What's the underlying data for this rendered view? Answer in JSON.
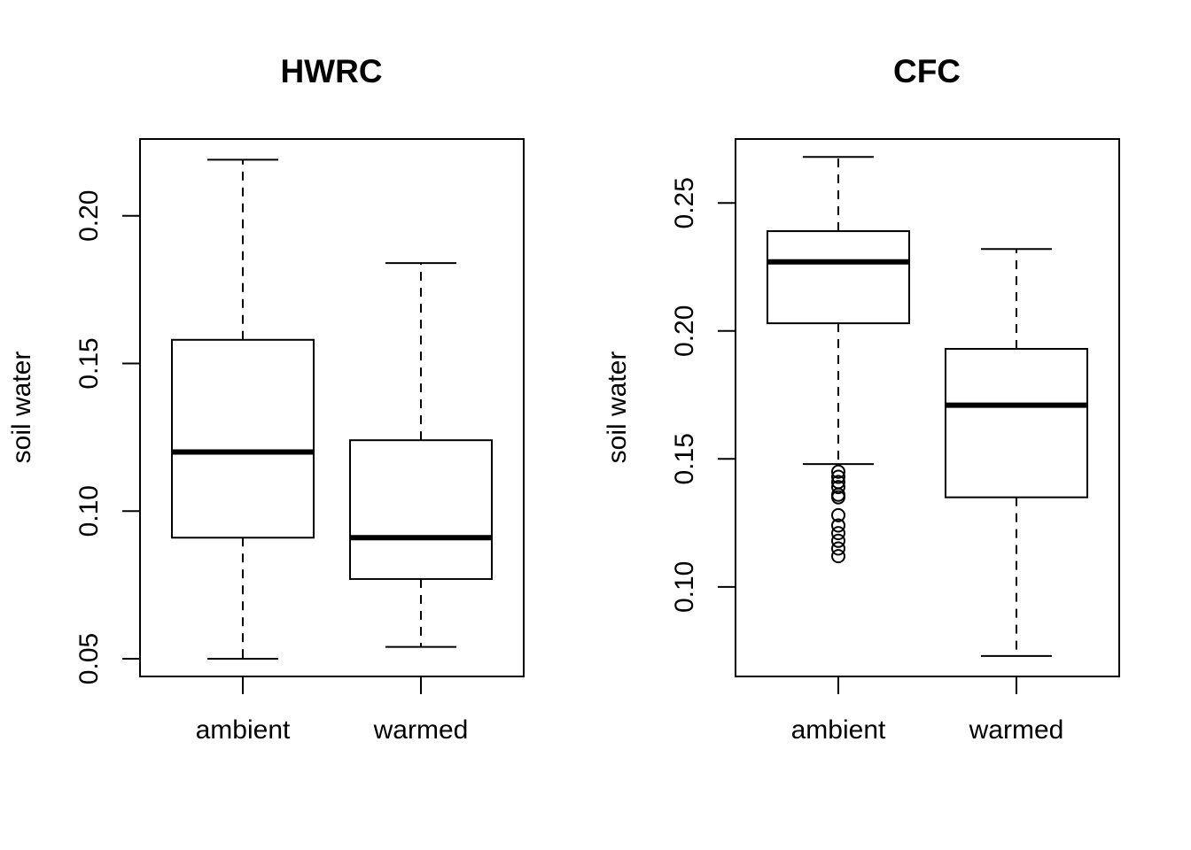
{
  "chart_data": [
    {
      "type": "box",
      "title": "HWRC",
      "xlabel": "",
      "ylabel": "soil water",
      "categories": [
        "ambient",
        "warmed"
      ],
      "ylim": [
        0.044,
        0.226
      ],
      "yticks": [
        0.05,
        0.1,
        0.15,
        0.2
      ],
      "ytick_labels": [
        "0.05",
        "0.10",
        "0.15",
        "0.20"
      ],
      "boxes": [
        {
          "category": "ambient",
          "whisker_low": 0.05,
          "q1": 0.091,
          "median": 0.12,
          "q3": 0.158,
          "whisker_high": 0.219,
          "outliers": []
        },
        {
          "category": "warmed",
          "whisker_low": 0.054,
          "q1": 0.077,
          "median": 0.091,
          "q3": 0.124,
          "whisker_high": 0.184,
          "outliers": []
        }
      ],
      "grid": false
    },
    {
      "type": "box",
      "title": "CFC",
      "xlabel": "",
      "ylabel": "soil water",
      "categories": [
        "ambient",
        "warmed"
      ],
      "ylim": [
        0.065,
        0.275
      ],
      "yticks": [
        0.1,
        0.15,
        0.2,
        0.25
      ],
      "ytick_labels": [
        "0.10",
        "0.15",
        "0.20",
        "0.25"
      ],
      "boxes": [
        {
          "category": "ambient",
          "whisker_low": 0.148,
          "q1": 0.203,
          "median": 0.227,
          "q3": 0.239,
          "whisker_high": 0.268,
          "outliers": [
            0.145,
            0.143,
            0.141,
            0.139,
            0.136,
            0.135,
            0.128,
            0.124,
            0.121,
            0.118,
            0.115,
            0.112
          ]
        },
        {
          "category": "warmed",
          "whisker_low": 0.073,
          "q1": 0.135,
          "median": 0.171,
          "q3": 0.193,
          "whisker_high": 0.232,
          "outliers": []
        }
      ],
      "grid": false
    }
  ]
}
